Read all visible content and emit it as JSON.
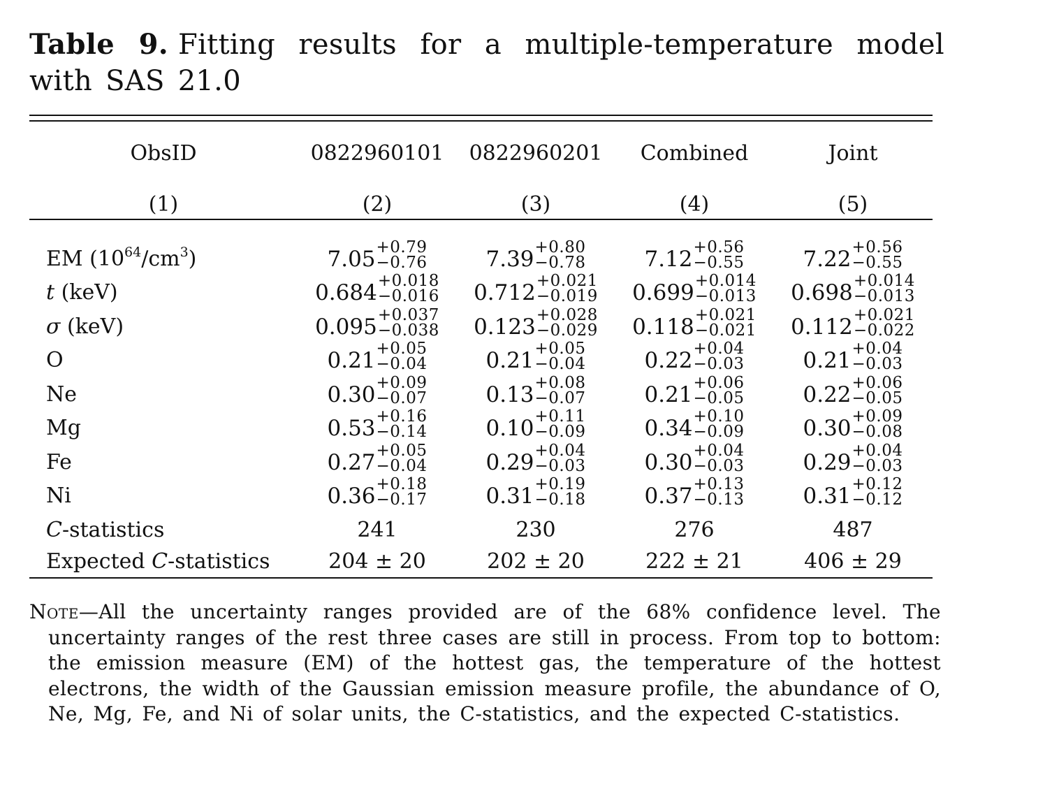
{
  "caption": {
    "label": "Table 9.",
    "text": "Fitting results for a multiple-temperature model with SAS 21.0"
  },
  "table": {
    "headers": [
      "ObsID",
      "0822960101",
      "0822960201",
      "Combined",
      "Joint"
    ],
    "column_numbers": [
      "(1)",
      "(2)",
      "(3)",
      "(4)",
      "(5)"
    ],
    "rows": [
      {
        "label_parts": {
          "pre": "EM (10",
          "exp1": "64",
          "mid": "/cm",
          "exp2": "3",
          "post": ")"
        },
        "values": [
          {
            "v": "7.05",
            "up": "+0.79",
            "lo": "−0.76"
          },
          {
            "v": "7.39",
            "up": "+0.80",
            "lo": "−0.78"
          },
          {
            "v": "7.12",
            "up": "+0.56",
            "lo": "−0.55"
          },
          {
            "v": "7.22",
            "up": "+0.56",
            "lo": "−0.55"
          }
        ]
      },
      {
        "label_sym": "t",
        "label_rest": " (keV)",
        "values": [
          {
            "v": "0.684",
            "up": "+0.018",
            "lo": "−0.016"
          },
          {
            "v": "0.712",
            "up": "+0.021",
            "lo": "−0.019"
          },
          {
            "v": "0.699",
            "up": "+0.014",
            "lo": "−0.013"
          },
          {
            "v": "0.698",
            "up": "+0.014",
            "lo": "−0.013"
          }
        ]
      },
      {
        "label_sym": "σ",
        "label_rest": " (keV)",
        "values": [
          {
            "v": "0.095",
            "up": "+0.037",
            "lo": "−0.038"
          },
          {
            "v": "0.123",
            "up": "+0.028",
            "lo": "−0.029"
          },
          {
            "v": "0.118",
            "up": "+0.021",
            "lo": "−0.021"
          },
          {
            "v": "0.112",
            "up": "+0.021",
            "lo": "−0.022"
          }
        ]
      },
      {
        "label": "O",
        "values": [
          {
            "v": "0.21",
            "up": "+0.05",
            "lo": "−0.04"
          },
          {
            "v": "0.21",
            "up": "+0.05",
            "lo": "−0.04"
          },
          {
            "v": "0.22",
            "up": "+0.04",
            "lo": "−0.03"
          },
          {
            "v": "0.21",
            "up": "+0.04",
            "lo": "−0.03"
          }
        ]
      },
      {
        "label": "Ne",
        "values": [
          {
            "v": "0.30",
            "up": "+0.09",
            "lo": "−0.07"
          },
          {
            "v": "0.13",
            "up": "+0.08",
            "lo": "−0.07"
          },
          {
            "v": "0.21",
            "up": "+0.06",
            "lo": "−0.05"
          },
          {
            "v": "0.22",
            "up": "+0.06",
            "lo": "−0.05"
          }
        ]
      },
      {
        "label": "Mg",
        "values": [
          {
            "v": "0.53",
            "up": "+0.16",
            "lo": "−0.14"
          },
          {
            "v": "0.10",
            "up": "+0.11",
            "lo": "−0.09"
          },
          {
            "v": "0.34",
            "up": "+0.10",
            "lo": "−0.09"
          },
          {
            "v": "0.30",
            "up": "+0.09",
            "lo": "−0.08"
          }
        ]
      },
      {
        "label": "Fe",
        "values": [
          {
            "v": "0.27",
            "up": "+0.05",
            "lo": "−0.04"
          },
          {
            "v": "0.29",
            "up": "+0.04",
            "lo": "−0.03"
          },
          {
            "v": "0.30",
            "up": "+0.04",
            "lo": "−0.03"
          },
          {
            "v": "0.29",
            "up": "+0.04",
            "lo": "−0.03"
          }
        ]
      },
      {
        "label": "Ni",
        "values": [
          {
            "v": "0.36",
            "up": "+0.18",
            "lo": "−0.17"
          },
          {
            "v": "0.31",
            "up": "+0.19",
            "lo": "−0.18"
          },
          {
            "v": "0.37",
            "up": "+0.13",
            "lo": "−0.13"
          },
          {
            "v": "0.31",
            "up": "+0.12",
            "lo": "−0.12"
          }
        ]
      }
    ],
    "cstat": {
      "label_sym": "C",
      "label_rest": "-statistics",
      "values": [
        "241",
        "230",
        "276",
        "487"
      ]
    },
    "expected_cstat": {
      "label_pre": "Expected ",
      "label_sym": "C",
      "label_rest": "-statistics",
      "values": [
        "204 ± 20",
        "202 ± 20",
        "222 ± 21",
        "406 ± 29"
      ]
    }
  },
  "note": {
    "lead": "Note",
    "text": "—All the uncertainty ranges provided are of the 68% confidence level. The uncertainty ranges of the rest three cases are still in process. From top to bottom: the emission measure (EM) of the hottest gas, the temperature of the hottest electrons, the width of the Gaussian emission measure profile, the abundance of O, Ne, Mg, Fe, and Ni of solar units, the C-statistics, and the expected C-statistics."
  }
}
